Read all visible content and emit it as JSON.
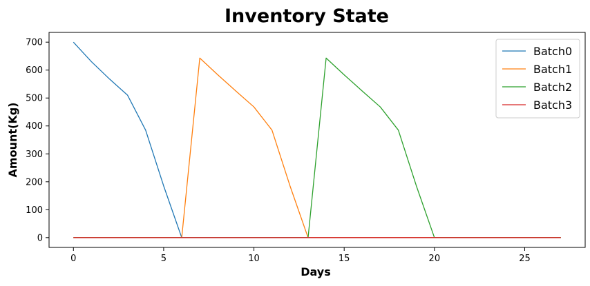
{
  "chart_data": {
    "type": "line",
    "title": "Inventory State",
    "xlabel": "Days",
    "ylabel": "Amount(Kg)",
    "xlim": [
      -1.35,
      28.35
    ],
    "ylim": [
      -35,
      735
    ],
    "xticks": [
      0,
      5,
      10,
      15,
      20,
      25
    ],
    "yticks": [
      0,
      100,
      200,
      300,
      400,
      500,
      600,
      700
    ],
    "legend_position": "top-right",
    "x": [
      0,
      1,
      2,
      3,
      4,
      5,
      6,
      7,
      8,
      9,
      10,
      11,
      12,
      13,
      14,
      15,
      16,
      17,
      18,
      19,
      20,
      21,
      22,
      23,
      24,
      25,
      26,
      27
    ],
    "series": [
      {
        "name": "Batch0",
        "color": "#1f77b4",
        "values": [
          700,
          630,
          568,
          510,
          385,
          185,
          0,
          0,
          0,
          0,
          0,
          0,
          0,
          0,
          0,
          0,
          0,
          0,
          0,
          0,
          0,
          0,
          0,
          0,
          0,
          0,
          0,
          0
        ]
      },
      {
        "name": "Batch1",
        "color": "#ff7f0e",
        "values": [
          0,
          0,
          0,
          0,
          0,
          0,
          0,
          643,
          583,
          525,
          468,
          385,
          185,
          0,
          0,
          0,
          0,
          0,
          0,
          0,
          0,
          0,
          0,
          0,
          0,
          0,
          0,
          0
        ]
      },
      {
        "name": "Batch2",
        "color": "#2ca02c",
        "values": [
          0,
          0,
          0,
          0,
          0,
          0,
          0,
          0,
          0,
          0,
          0,
          0,
          0,
          0,
          643,
          583,
          525,
          468,
          385,
          185,
          0,
          0,
          0,
          0,
          0,
          0,
          0,
          0
        ]
      },
      {
        "name": "Batch3",
        "color": "#d62728",
        "values": [
          0,
          0,
          0,
          0,
          0,
          0,
          0,
          0,
          0,
          0,
          0,
          0,
          0,
          0,
          0,
          0,
          0,
          0,
          0,
          0,
          0,
          0,
          0,
          0,
          0,
          0,
          0,
          0
        ]
      }
    ]
  }
}
